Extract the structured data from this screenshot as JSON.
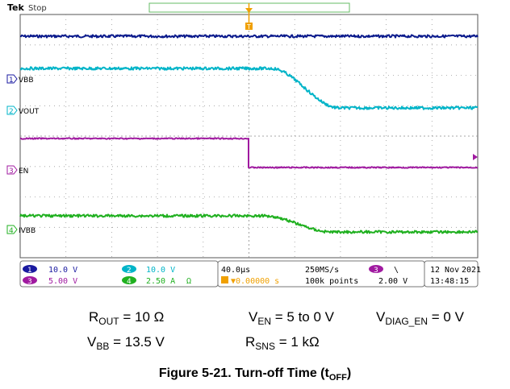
{
  "header": {
    "brand": "Tek",
    "run_state": "Stop"
  },
  "channels": [
    {
      "number": "1",
      "name": "VBB",
      "color": "#00b4c8",
      "scale": "10.0 V"
    },
    {
      "number": "2",
      "name": "VOUT",
      "color": "#00b4c8",
      "scale": "10.0 V"
    },
    {
      "number": "3",
      "name": "EN",
      "color": "#a01aa0",
      "scale": "5.00 V"
    },
    {
      "number": "4",
      "name": "IVBB",
      "color": "#20b020",
      "scale": "2.50 A",
      "unit_suffix": "Ω"
    }
  ],
  "colors": {
    "ch1_label": "#1a1aa0",
    "top_trace": "#0a1a8c",
    "vout_trace": "#00b4c8",
    "en_trace": "#a01aa0",
    "ivbb_trace": "#20b020",
    "trigger": "#f0a000"
  },
  "timebase": {
    "scale": "40.0µs",
    "trigger_position": "▼0.00000 s",
    "sample_rate": "250MS/s",
    "record_length": "100k points"
  },
  "trigger": {
    "source": "3",
    "slope": "\\",
    "level": "2.00 V"
  },
  "datetime": {
    "date_day": "12 Nov",
    "year": "2021",
    "time": "13:48:15"
  },
  "conditions": {
    "rout": {
      "sym": "R",
      "sub": "OUT",
      "val": " = 10 Ω"
    },
    "ven": {
      "sym": "V",
      "sub": "EN",
      "val": " = 5 to 0 V"
    },
    "vdiag": {
      "sym": "V",
      "sub": "DIAG_EN",
      "val": " = 0 V"
    },
    "vbb": {
      "sym": "V",
      "sub": "BB",
      "val": " = 13.5 V"
    },
    "rsns": {
      "sym": "R",
      "sub": "SNS",
      "val": " = 1 kΩ"
    }
  },
  "figure": {
    "label": "Figure 5-21. Turn-off Time (t",
    "sub": "OFF",
    "close": ")"
  }
}
